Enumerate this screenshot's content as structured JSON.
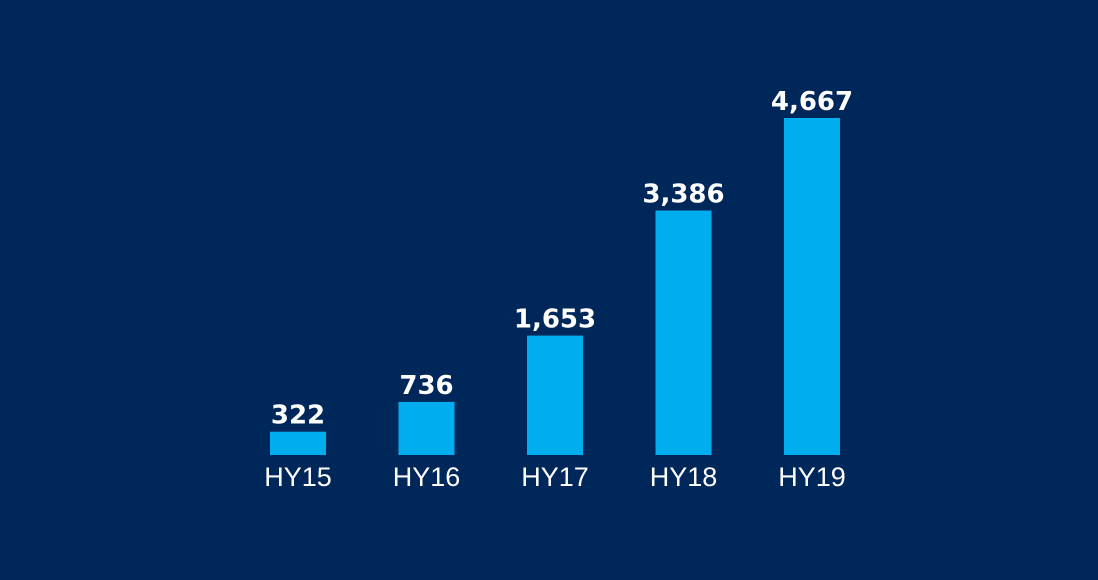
{
  "colors": {
    "background": "#00275a",
    "bar": "#00aeef",
    "text": "#ffffff"
  },
  "chart_data": {
    "type": "bar",
    "categories": [
      "HY15",
      "HY16",
      "HY17",
      "HY18",
      "HY19"
    ],
    "values": [
      322,
      736,
      1653,
      3386,
      4667
    ],
    "value_labels": [
      "322",
      "736",
      "1,653",
      "3,386",
      "4,667"
    ],
    "title": "",
    "xlabel": "",
    "ylabel": "",
    "ylim": [
      0,
      4667
    ],
    "grid": false,
    "legend": "none"
  }
}
